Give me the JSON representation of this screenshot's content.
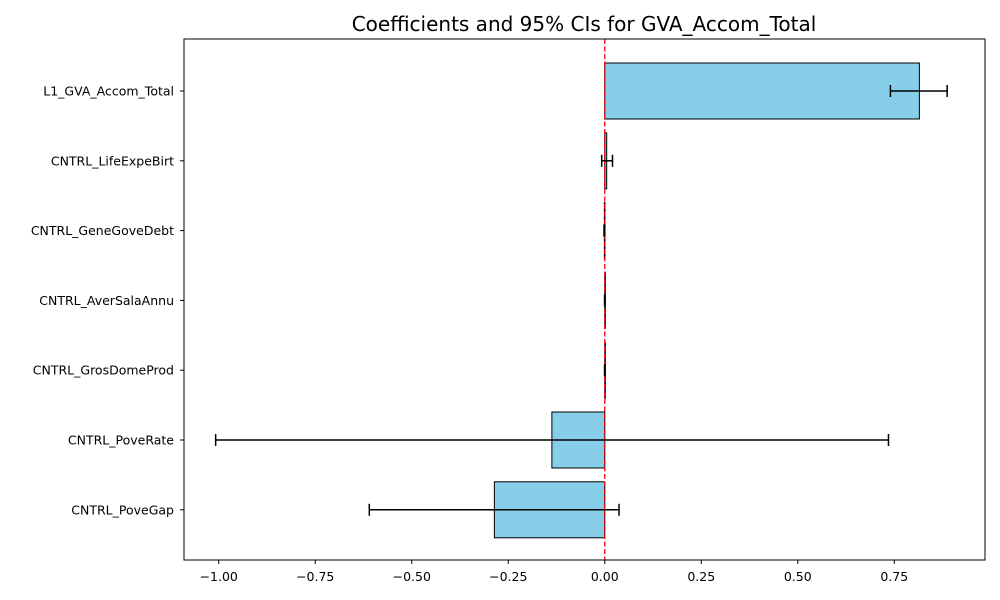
{
  "chart_data": {
    "type": "bar",
    "orientation": "horizontal",
    "title": "Coefficients and 95% CIs for GVA_Accom_Total",
    "xlabel": "",
    "ylabel": "",
    "xlim": [
      -1.09,
      0.985
    ],
    "xticks": [
      -1.0,
      -0.75,
      -0.5,
      -0.25,
      0.0,
      0.25,
      0.5,
      0.75
    ],
    "xtick_labels": [
      "−1.00",
      "−0.75",
      "−0.50",
      "−0.25",
      "0.00",
      "0.25",
      "0.50",
      "0.75"
    ],
    "reference_line": {
      "x": 0.0,
      "style": "dashed",
      "color": "#ff0000"
    },
    "bar_color": "#87ceeb",
    "edge_color": "#000000",
    "categories": [
      "L1_GVA_Accom_Total",
      "CNTRL_LifeExpeBirt",
      "CNTRL_GeneGoveDebt",
      "CNTRL_AverSalaAnnu",
      "CNTRL_GrosDomeProd",
      "CNTRL_PoveRate",
      "CNTRL_PoveGap"
    ],
    "values": [
      0.815,
      0.005,
      -0.001,
      0.0,
      0.0,
      -0.137,
      -0.286
    ],
    "ci_lower": [
      0.74,
      -0.008,
      -0.002,
      -0.0005,
      -0.0005,
      -1.008,
      -0.61
    ],
    "ci_upper": [
      0.887,
      0.02,
      0.0,
      0.0005,
      0.0005,
      0.735,
      0.037
    ]
  }
}
